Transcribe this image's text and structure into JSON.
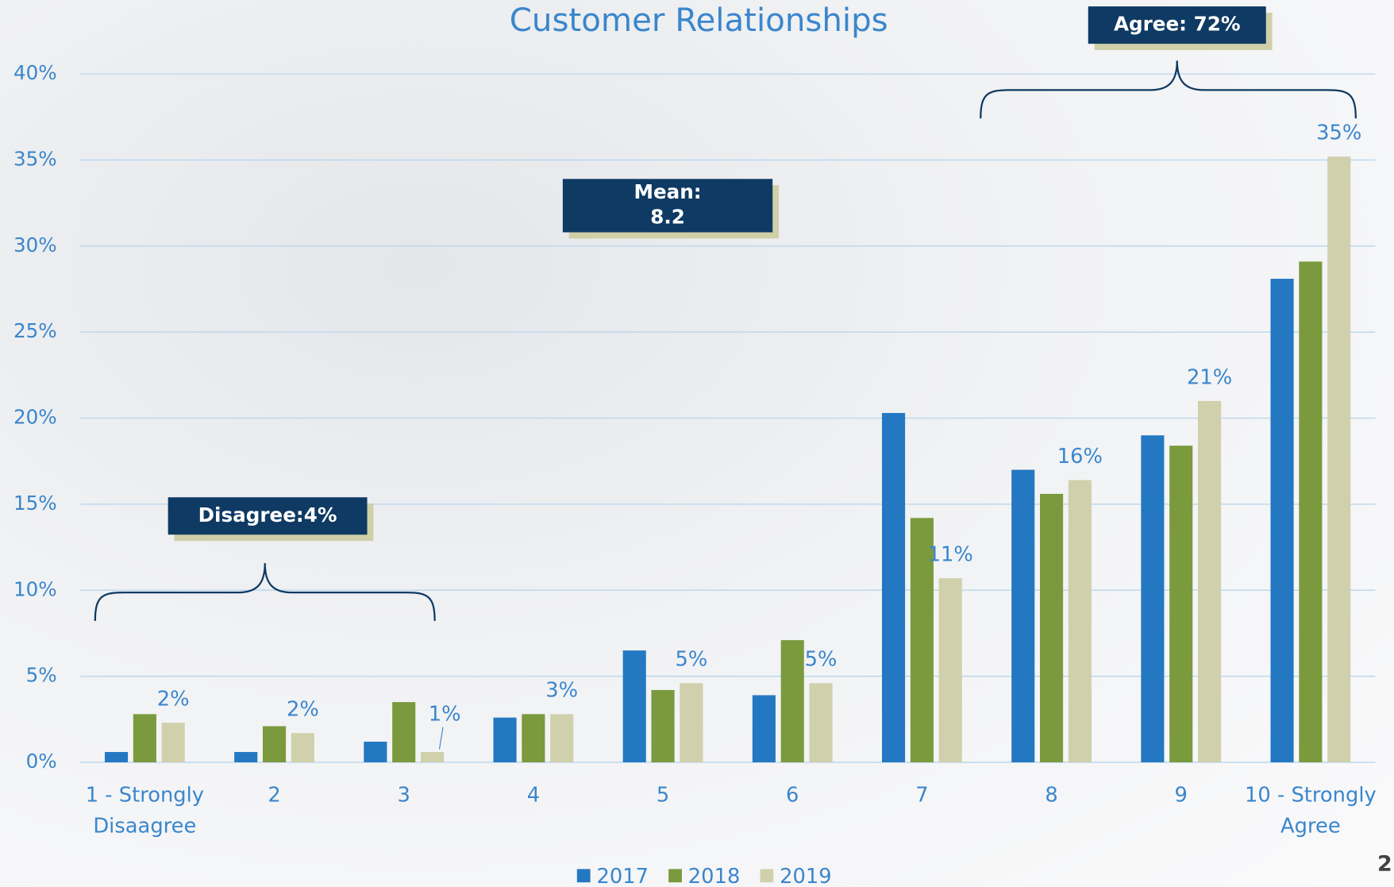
{
  "chart_data": {
    "type": "bar",
    "title": "Customer Relationships",
    "categories": [
      "1 - Strongly Disaagree",
      "2",
      "3",
      "4",
      "5",
      "6",
      "7",
      "8",
      "9",
      "10 - Strongly Agree"
    ],
    "series": [
      {
        "name": "2017",
        "color": "#2478c2",
        "values": [
          0.6,
          0.6,
          1.2,
          2.6,
          6.5,
          3.9,
          20.3,
          17.0,
          19.0,
          28.1
        ]
      },
      {
        "name": "2018",
        "color": "#7a9a3d",
        "values": [
          2.8,
          2.1,
          3.5,
          2.8,
          4.2,
          7.1,
          14.2,
          15.6,
          18.4,
          29.1
        ]
      },
      {
        "name": "2019",
        "color": "#d0d0ad",
        "values": [
          2.3,
          1.7,
          0.6,
          2.8,
          4.6,
          4.6,
          10.7,
          16.4,
          21.0,
          35.2
        ],
        "value_labels": [
          "2%",
          "2%",
          "1%",
          "3%",
          "5%",
          "5%",
          "11%",
          "16%",
          "21%",
          "35%"
        ]
      }
    ],
    "ylim": [
      0,
      40
    ],
    "yticks": [
      {
        "value": 0,
        "label": "0%"
      },
      {
        "value": 5,
        "label": "5%"
      },
      {
        "value": 10,
        "label": "10%"
      },
      {
        "value": 15,
        "label": "15%"
      },
      {
        "value": 20,
        "label": "20%"
      },
      {
        "value": 25,
        "label": "25%"
      },
      {
        "value": 30,
        "label": "30%"
      },
      {
        "value": 35,
        "label": "35%"
      },
      {
        "value": 40,
        "label": "40%"
      }
    ],
    "grid": true,
    "legend": "bottom",
    "annotations": {
      "agree": "Agree: 72%",
      "mean": [
        "Mean:",
        "8.2"
      ],
      "disagree": "Disagree:4%"
    },
    "page_number": "2"
  }
}
